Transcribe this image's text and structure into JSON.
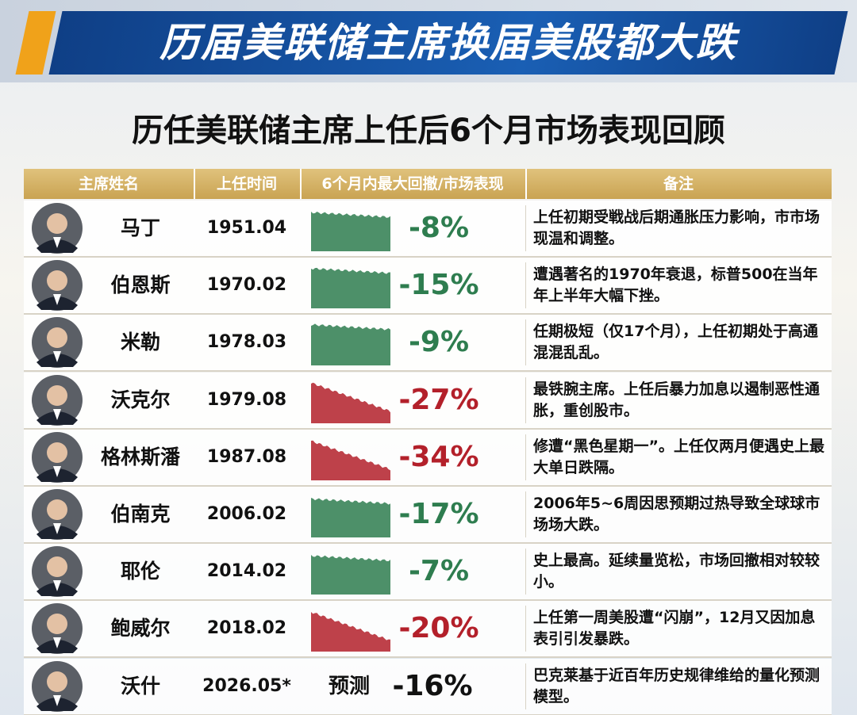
{
  "header": {
    "title": "历届美联储主席换届美股都大跌",
    "subtitle": "历任美联储主席上任后6个月市场表现回顾"
  },
  "table": {
    "columns": [
      "主席姓名",
      "上任时间",
      "6个月内最大回撤/市场表现",
      "备注"
    ],
    "rows": [
      {
        "name": "马丁",
        "date": "1951.04",
        "change": "-8%",
        "color": "#2e7d4f",
        "note": "上任初期受戦战后期通胀压力影响，市市场现温和调整。"
      },
      {
        "name": "伯恩斯",
        "date": "1970.02",
        "change": "-15%",
        "color": "#2e7d4f",
        "note": "遭遇著名的1970年衰退，标普500在当年年上半年大幅下挫。"
      },
      {
        "name": "米勒",
        "date": "1978.03",
        "change": "-9%",
        "color": "#2e7d4f",
        "note": "任期极短（仅17个月），上任初期处于高通混混乱乱。"
      },
      {
        "name": "沃克尔",
        "date": "1979.08",
        "change": "-27%",
        "color": "#b3202a",
        "note": "最铁腕主席。上任后暴力加息以遏制恶性通胀，重创股市。"
      },
      {
        "name": "格林斯潘",
        "date": "1987.08",
        "change": "-34%",
        "color": "#b3202a",
        "note": "修遭“黑色星期一”。上任仅两月便遇史上最大单日跌隔。"
      },
      {
        "name": "伯南克",
        "date": "2006.02",
        "change": "-17%",
        "color": "#2e7d4f",
        "note": "2006年5~6周因思预期过热导致全球球市场场大跌。"
      },
      {
        "name": "耶伦",
        "date": "2014.02",
        "change": "-7%",
        "color": "#2e7d4f",
        "note": "史上最高。延续量览松，市场回撤相对较较小。"
      },
      {
        "name": "鲍威尔",
        "date": "2018.02",
        "change": "-20%",
        "color": "#b3202a",
        "note": "上任第一周美股遭“闪崩”，12月又因加息表引引发暴跌。"
      },
      {
        "name": "沃什",
        "date": "2026.05*",
        "forecast": "预测",
        "change": "-16%",
        "color": "#111111",
        "note": "巴克莱基于近百年历史规律维给的量化预测模型。"
      }
    ]
  }
}
